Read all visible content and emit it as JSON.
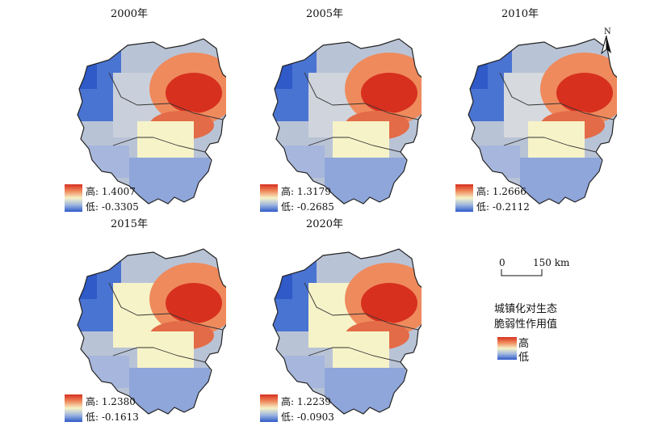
{
  "panels": [
    {
      "year": "2000年",
      "high": "高: 1.4007",
      "low": "低: -0.3305"
    },
    {
      "year": "2005年",
      "high": "高: 1.3179",
      "low": "低: -0.2685"
    },
    {
      "year": "2010年",
      "high": "高: 1.2666",
      "low": "低: -0.2112"
    },
    {
      "year": "2015年",
      "high": "高: 1.2380",
      "low": "低: -0.1613"
    },
    {
      "year": "2020年",
      "high": "高: 1.2239",
      "low": "低: -0.0903"
    }
  ],
  "scale": {
    "zero": "0",
    "distance": "150 km"
  },
  "north": {
    "label": "N"
  },
  "key": {
    "title_line1": "城镇化对生态",
    "title_line2": "脆弱性作用值",
    "high": "高",
    "low": "低"
  },
  "colors": {
    "high": "#d7301f",
    "mid_high": "#ef8a5c",
    "neutral": "#f7f3c8",
    "mid_low": "#9eb6e0",
    "low": "#2f5ac8",
    "boundary": "#222222"
  }
}
